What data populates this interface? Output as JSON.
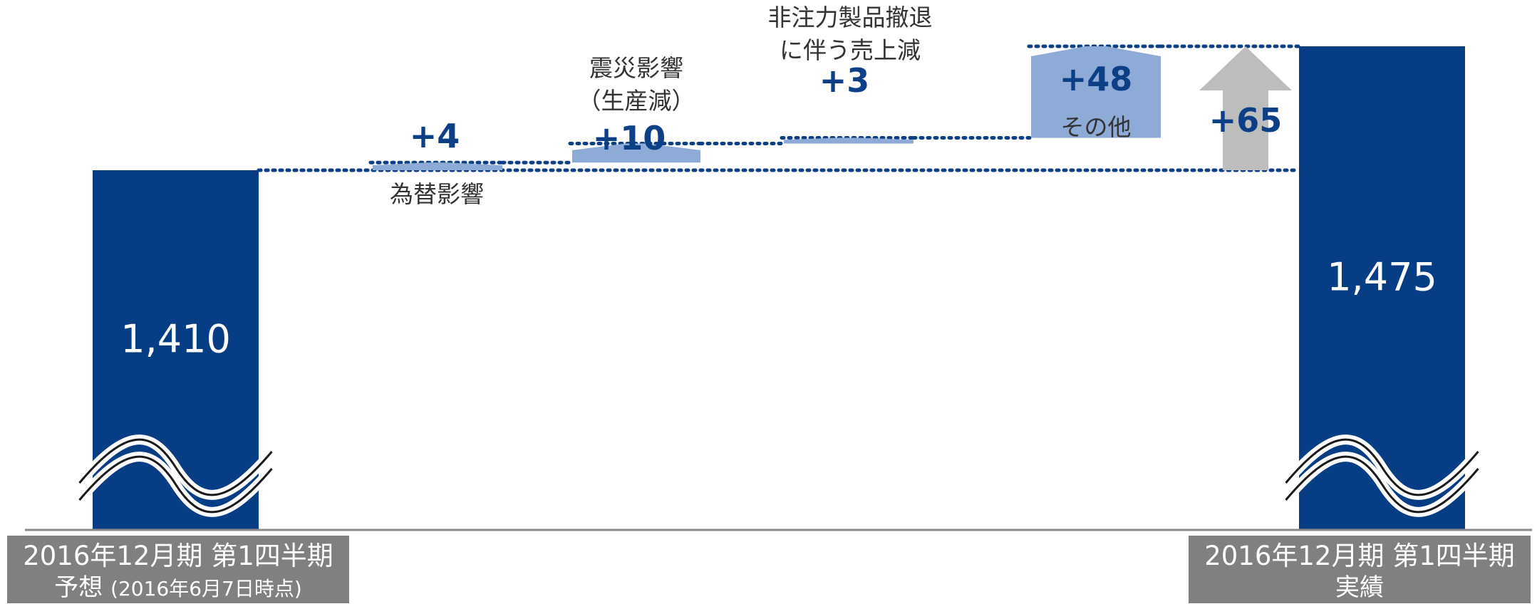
{
  "chart_data": {
    "type": "bar",
    "subtype": "waterfall",
    "categories": [
      "2016年12月期 第1四半期 予想 (2016年6月7日時点)",
      "為替影響",
      "震災影響（生産減）",
      "非注力製品撤退に伴う売上減",
      "その他",
      "2016年12月期 第1四半期 実績"
    ],
    "start": {
      "value": 1410,
      "label": "1,410",
      "line1": "2016年12月期 第1四半期",
      "line2_main": "予想",
      "line2_note": "(2016年6月7日時点)"
    },
    "end": {
      "value": 1475,
      "label": "1,475",
      "line1": "2016年12月期 第1四半期",
      "line2_main": "実績"
    },
    "steps": [
      {
        "name_lines": [
          "為替影響"
        ],
        "delta": 4,
        "label": "+4"
      },
      {
        "name_lines": [
          "震災影響",
          "（生産減）"
        ],
        "delta": 10,
        "label": "+10"
      },
      {
        "name_lines": [
          "非注力製品撤退",
          "に伴う売上減"
        ],
        "delta": 3,
        "label": "+3"
      },
      {
        "name_lines": [
          "その他"
        ],
        "delta": 48,
        "label": "+48"
      }
    ],
    "total_change": {
      "delta": 65,
      "label": "+65"
    },
    "axis_break": true,
    "colors": {
      "main_bar": "#073d85",
      "step_fill": "#8eaad6",
      "step_label": "#0c3f86",
      "arrow": "#bdbdbd",
      "dotted_line": "#0c3f86",
      "label_box": "#808080"
    }
  }
}
